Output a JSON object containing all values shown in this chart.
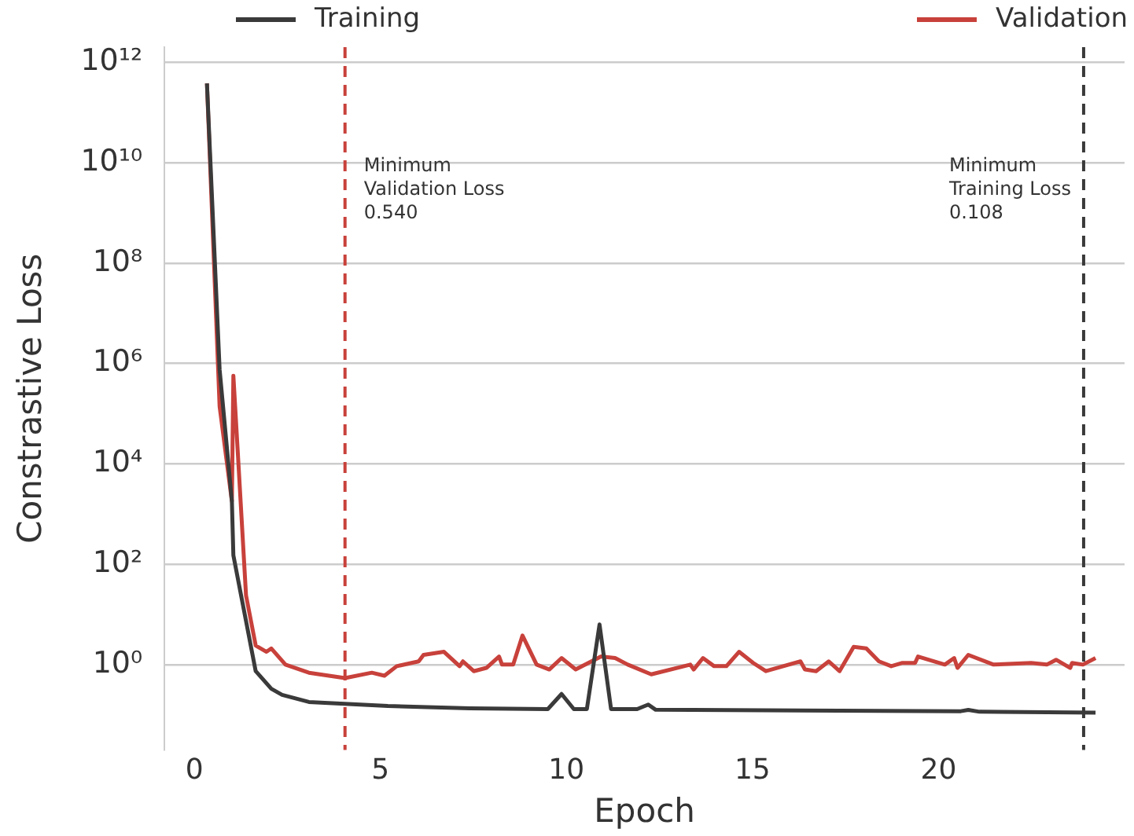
{
  "chart_data": {
    "type": "line",
    "xlabel": "Epoch",
    "ylabel": "Constrastive Loss",
    "log": "y",
    "grid": "y",
    "legend": "top",
    "marker": "none",
    "line_style": "solid",
    "xlim": [
      -0.8,
      25
    ],
    "xticks": [
      0,
      5,
      10,
      15,
      20
    ],
    "ylim": [
      0.02,
      2000000000000
    ],
    "yticks": [
      {
        "value": 1,
        "label": "10⁰"
      },
      {
        "value": 100,
        "label": "10²"
      },
      {
        "value": 10000,
        "label": "10⁴"
      },
      {
        "value": 1000000,
        "label": "10⁶"
      },
      {
        "value": 100000000,
        "label": "10⁸"
      },
      {
        "value": 10000000000,
        "label": "10¹⁰"
      },
      {
        "value": 1000000000000,
        "label": "10¹²"
      }
    ],
    "series": [
      {
        "name": "Training",
        "color": "#3a3a3a",
        "x": [
          0.34,
          0.68,
          1.01,
          1.05,
          1.65,
          2.07,
          2.36,
          3.08,
          5.2,
          7.4,
          9.5,
          9.87,
          10.2,
          10.55,
          10.89,
          11.2,
          11.9,
          12.2,
          12.4,
          20.6,
          20.8,
          21.1,
          24.22
        ],
        "values": [
          380000000000,
          760000,
          1800,
          150,
          0.74,
          0.33,
          0.25,
          0.18,
          0.15,
          0.135,
          0.13,
          0.26,
          0.13,
          0.13,
          6.3,
          0.13,
          0.13,
          0.16,
          0.126,
          0.118,
          0.125,
          0.115,
          0.11
        ]
      },
      {
        "name": "Validation",
        "color": "#c8413b",
        "x": [
          0.34,
          0.68,
          1.01,
          1.05,
          1.39,
          1.65,
          1.94,
          2.07,
          2.45,
          3.08,
          4.05,
          4.77,
          5.11,
          5.44,
          6.03,
          6.16,
          6.71,
          7.13,
          7.22,
          7.51,
          7.85,
          8.19,
          8.27,
          8.57,
          8.82,
          9.2,
          9.54,
          9.87,
          10.25,
          10.93,
          11.31,
          11.65,
          12.28,
          13.33,
          13.42,
          13.67,
          13.97,
          14.3,
          14.64,
          15.02,
          15.36,
          16.29,
          16.41,
          16.71,
          17.05,
          17.34,
          17.72,
          18.06,
          18.4,
          18.73,
          19.03,
          19.37,
          19.45,
          20.17,
          20.42,
          20.51,
          20.8,
          21.48,
          22.49,
          22.91,
          23.16,
          23.54,
          23.59,
          23.88,
          24.22
        ],
        "values": [
          380000000000,
          140000,
          1800,
          570000,
          24,
          2.4,
          1.8,
          2.1,
          1.0,
          0.69,
          0.54,
          0.69,
          0.6,
          0.93,
          1.16,
          1.56,
          1.8,
          0.93,
          1.16,
          0.74,
          0.86,
          1.45,
          1.0,
          1.0,
          3.8,
          1.0,
          0.8,
          1.35,
          0.8,
          1.45,
          1.35,
          1.0,
          0.64,
          1.0,
          0.8,
          1.35,
          0.93,
          0.93,
          1.8,
          1.08,
          0.74,
          1.16,
          0.8,
          0.74,
          1.16,
          0.74,
          2.26,
          2.1,
          1.16,
          0.93,
          1.08,
          1.08,
          1.45,
          1.0,
          1.35,
          0.86,
          1.56,
          1.0,
          1.08,
          1.0,
          1.25,
          0.86,
          1.08,
          1.0,
          1.35
        ]
      }
    ],
    "ref_lines": [
      {
        "axis": "x",
        "value": 4.05,
        "label": "Minimum\nValidation Loss\n0.540",
        "color": "#c8413b",
        "line_style": "dashed"
      },
      {
        "axis": "x",
        "value": 23.9,
        "label": "Minimum\nTraining Loss\n0.108",
        "color": "#3a3a3a",
        "line_style": "dashed"
      }
    ]
  }
}
